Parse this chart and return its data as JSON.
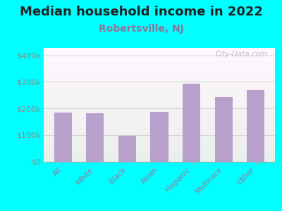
{
  "title": "Median household income in 2022",
  "subtitle": "Robertsville, NJ",
  "categories": [
    "All",
    "White",
    "Black",
    "Asian",
    "Hispanic",
    "Multirace",
    "Other"
  ],
  "values": [
    185000,
    183000,
    97000,
    186000,
    293000,
    243000,
    270000
  ],
  "bar_color": "#b8a0cc",
  "background_outer": "#00ffff",
  "title_color": "#222222",
  "subtitle_color": "#887799",
  "ytick_labels": [
    "$0",
    "$100k",
    "$200k",
    "$300k",
    "$400k"
  ],
  "ytick_vals": [
    0,
    100000,
    200000,
    300000,
    400000
  ],
  "ylim": [
    0,
    430000
  ],
  "title_fontsize": 13,
  "subtitle_fontsize": 10,
  "tick_label_color": "#888888",
  "xtick_label_color": "#997799",
  "watermark": "City-Data.com"
}
